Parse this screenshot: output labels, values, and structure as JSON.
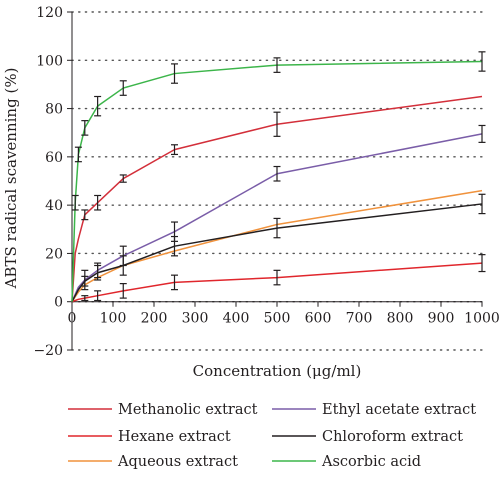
{
  "chart_data": {
    "type": "line",
    "title": "",
    "xlabel": "Concentration (μg/ml)",
    "ylabel": "ABTS radical scavenning (%)",
    "xlim": [
      0,
      1000
    ],
    "ylim": [
      -20,
      120
    ],
    "x_ticks": [
      "0",
      "100",
      "200",
      "300",
      "400",
      "500",
      "600",
      "700",
      "800",
      "900",
      "1000"
    ],
    "y_ticks": [
      "−20",
      "0",
      "20",
      "40",
      "60",
      "80",
      "100",
      "120"
    ],
    "grid": "horizontal dotted",
    "legend_position": "bottom",
    "series": [
      {
        "name": "Methanolic extract",
        "color": "#d32f3a",
        "points": [
          [
            0,
            0
          ],
          [
            7.8,
            20
          ],
          [
            15.6,
            26
          ],
          [
            31.25,
            36
          ],
          [
            62.5,
            41
          ],
          [
            125,
            51
          ],
          [
            250,
            63
          ],
          [
            500,
            73.5
          ],
          [
            1000,
            85
          ]
        ],
        "errors": [
          null,
          null,
          null,
          2,
          3,
          1.5,
          2,
          5,
          null
        ]
      },
      {
        "name": "Hexane extract",
        "color": "#e0262c",
        "points": [
          [
            0,
            0
          ],
          [
            7.8,
            0.5
          ],
          [
            15.6,
            1
          ],
          [
            31.25,
            1.5
          ],
          [
            62.5,
            2.5
          ],
          [
            125,
            4.5
          ],
          [
            250,
            8
          ],
          [
            500,
            10
          ],
          [
            1000,
            16
          ]
        ],
        "errors": [
          null,
          null,
          null,
          1,
          2,
          3,
          3,
          3,
          3.5
        ]
      },
      {
        "name": "Aqueous extract",
        "color": "#f0923c",
        "points": [
          [
            0,
            0
          ],
          [
            7.8,
            2
          ],
          [
            15.6,
            4
          ],
          [
            31.25,
            7
          ],
          [
            62.5,
            10
          ],
          [
            125,
            15
          ],
          [
            250,
            21
          ],
          [
            500,
            32
          ],
          [
            1000,
            46
          ]
        ],
        "errors": [
          null,
          null,
          null,
          null,
          null,
          null,
          null,
          null,
          null
        ]
      },
      {
        "name": "Ethyl acetate extract",
        "color": "#7a5da8",
        "points": [
          [
            0,
            0
          ],
          [
            7.8,
            3
          ],
          [
            15.6,
            6
          ],
          [
            31.25,
            9
          ],
          [
            62.5,
            13
          ],
          [
            125,
            19
          ],
          [
            250,
            29
          ],
          [
            500,
            53
          ],
          [
            1000,
            69.5
          ]
        ],
        "errors": [
          null,
          null,
          null,
          4,
          3,
          4,
          4,
          3,
          3.5
        ]
      },
      {
        "name": "Chloroform extract",
        "color": "#231f20",
        "points": [
          [
            0,
            0
          ],
          [
            7.8,
            2.5
          ],
          [
            15.6,
            5
          ],
          [
            31.25,
            8.5
          ],
          [
            62.5,
            12
          ],
          [
            125,
            15
          ],
          [
            250,
            23
          ],
          [
            500,
            30.5
          ],
          [
            1000,
            40.5
          ]
        ],
        "errors": [
          null,
          null,
          null,
          2,
          3,
          4,
          4,
          4,
          4
        ]
      },
      {
        "name": "Ascorbic acid",
        "color": "#3cb54a",
        "points": [
          [
            0,
            0
          ],
          [
            7.8,
            41
          ],
          [
            15.6,
            61
          ],
          [
            31.25,
            72
          ],
          [
            62.5,
            81
          ],
          [
            125,
            88.5
          ],
          [
            250,
            94.5
          ],
          [
            500,
            98
          ],
          [
            1000,
            99.5
          ]
        ],
        "errors": [
          null,
          3,
          3,
          3,
          4,
          3,
          4,
          3,
          4
        ]
      }
    ]
  }
}
